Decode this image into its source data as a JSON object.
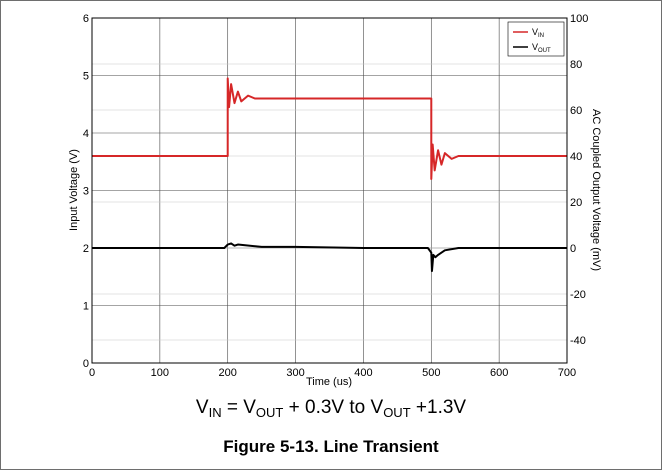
{
  "chart_data": {
    "type": "line",
    "xlabel": "Time (us)",
    "ylabel_left": "Input Voltage (V)",
    "ylabel_right": "AC Coupled Output Voltage (mV)",
    "xlim": [
      0,
      700
    ],
    "ylim_left": [
      0,
      6
    ],
    "ylim_right": [
      -50,
      100
    ],
    "x_ticks": [
      "0",
      "100",
      "200",
      "300",
      "400",
      "500",
      "600",
      "700"
    ],
    "y_ticks_left": [
      "0",
      "1",
      "2",
      "3",
      "4",
      "5",
      "6"
    ],
    "y_ticks_right": [
      "-40",
      "-20",
      "0",
      "20",
      "40",
      "60",
      "80",
      "100"
    ],
    "grid": true,
    "legend_position": "top-right",
    "series": [
      {
        "name": "V",
        "name_sub": "IN",
        "color": "#d62728",
        "axis": "left",
        "x": [
          0,
          200,
          200,
          202,
          205,
          210,
          215,
          220,
          230,
          240,
          250,
          500,
          500,
          502,
          505,
          510,
          515,
          520,
          530,
          540,
          550,
          700
        ],
        "y": [
          3.6,
          3.6,
          4.95,
          4.45,
          4.85,
          4.52,
          4.72,
          4.55,
          4.65,
          4.6,
          4.6,
          4.6,
          3.2,
          3.8,
          3.35,
          3.7,
          3.45,
          3.65,
          3.55,
          3.6,
          3.6,
          3.6
        ]
      },
      {
        "name": "V",
        "name_sub": "OUT",
        "color": "#000000",
        "axis": "right",
        "x": [
          0,
          100,
          195,
          200,
          205,
          210,
          215,
          250,
          300,
          400,
          495,
          500,
          501,
          503,
          506,
          510,
          520,
          540,
          560,
          600,
          700
        ],
        "y": [
          0,
          0,
          0,
          1.5,
          2,
          1,
          1.5,
          0.5,
          0.5,
          0,
          0,
          -2,
          -10,
          -3,
          -4,
          -3,
          -1,
          0,
          0,
          0,
          0
        ]
      }
    ]
  },
  "formula": {
    "v1": "V",
    "s1": "IN",
    "t1": " = V",
    "s2": "OUT",
    "t2": " + 0.3V to V",
    "s3": "OUT",
    "t3": " +1.3V"
  },
  "caption": "Figure 5-13. Line Transient"
}
